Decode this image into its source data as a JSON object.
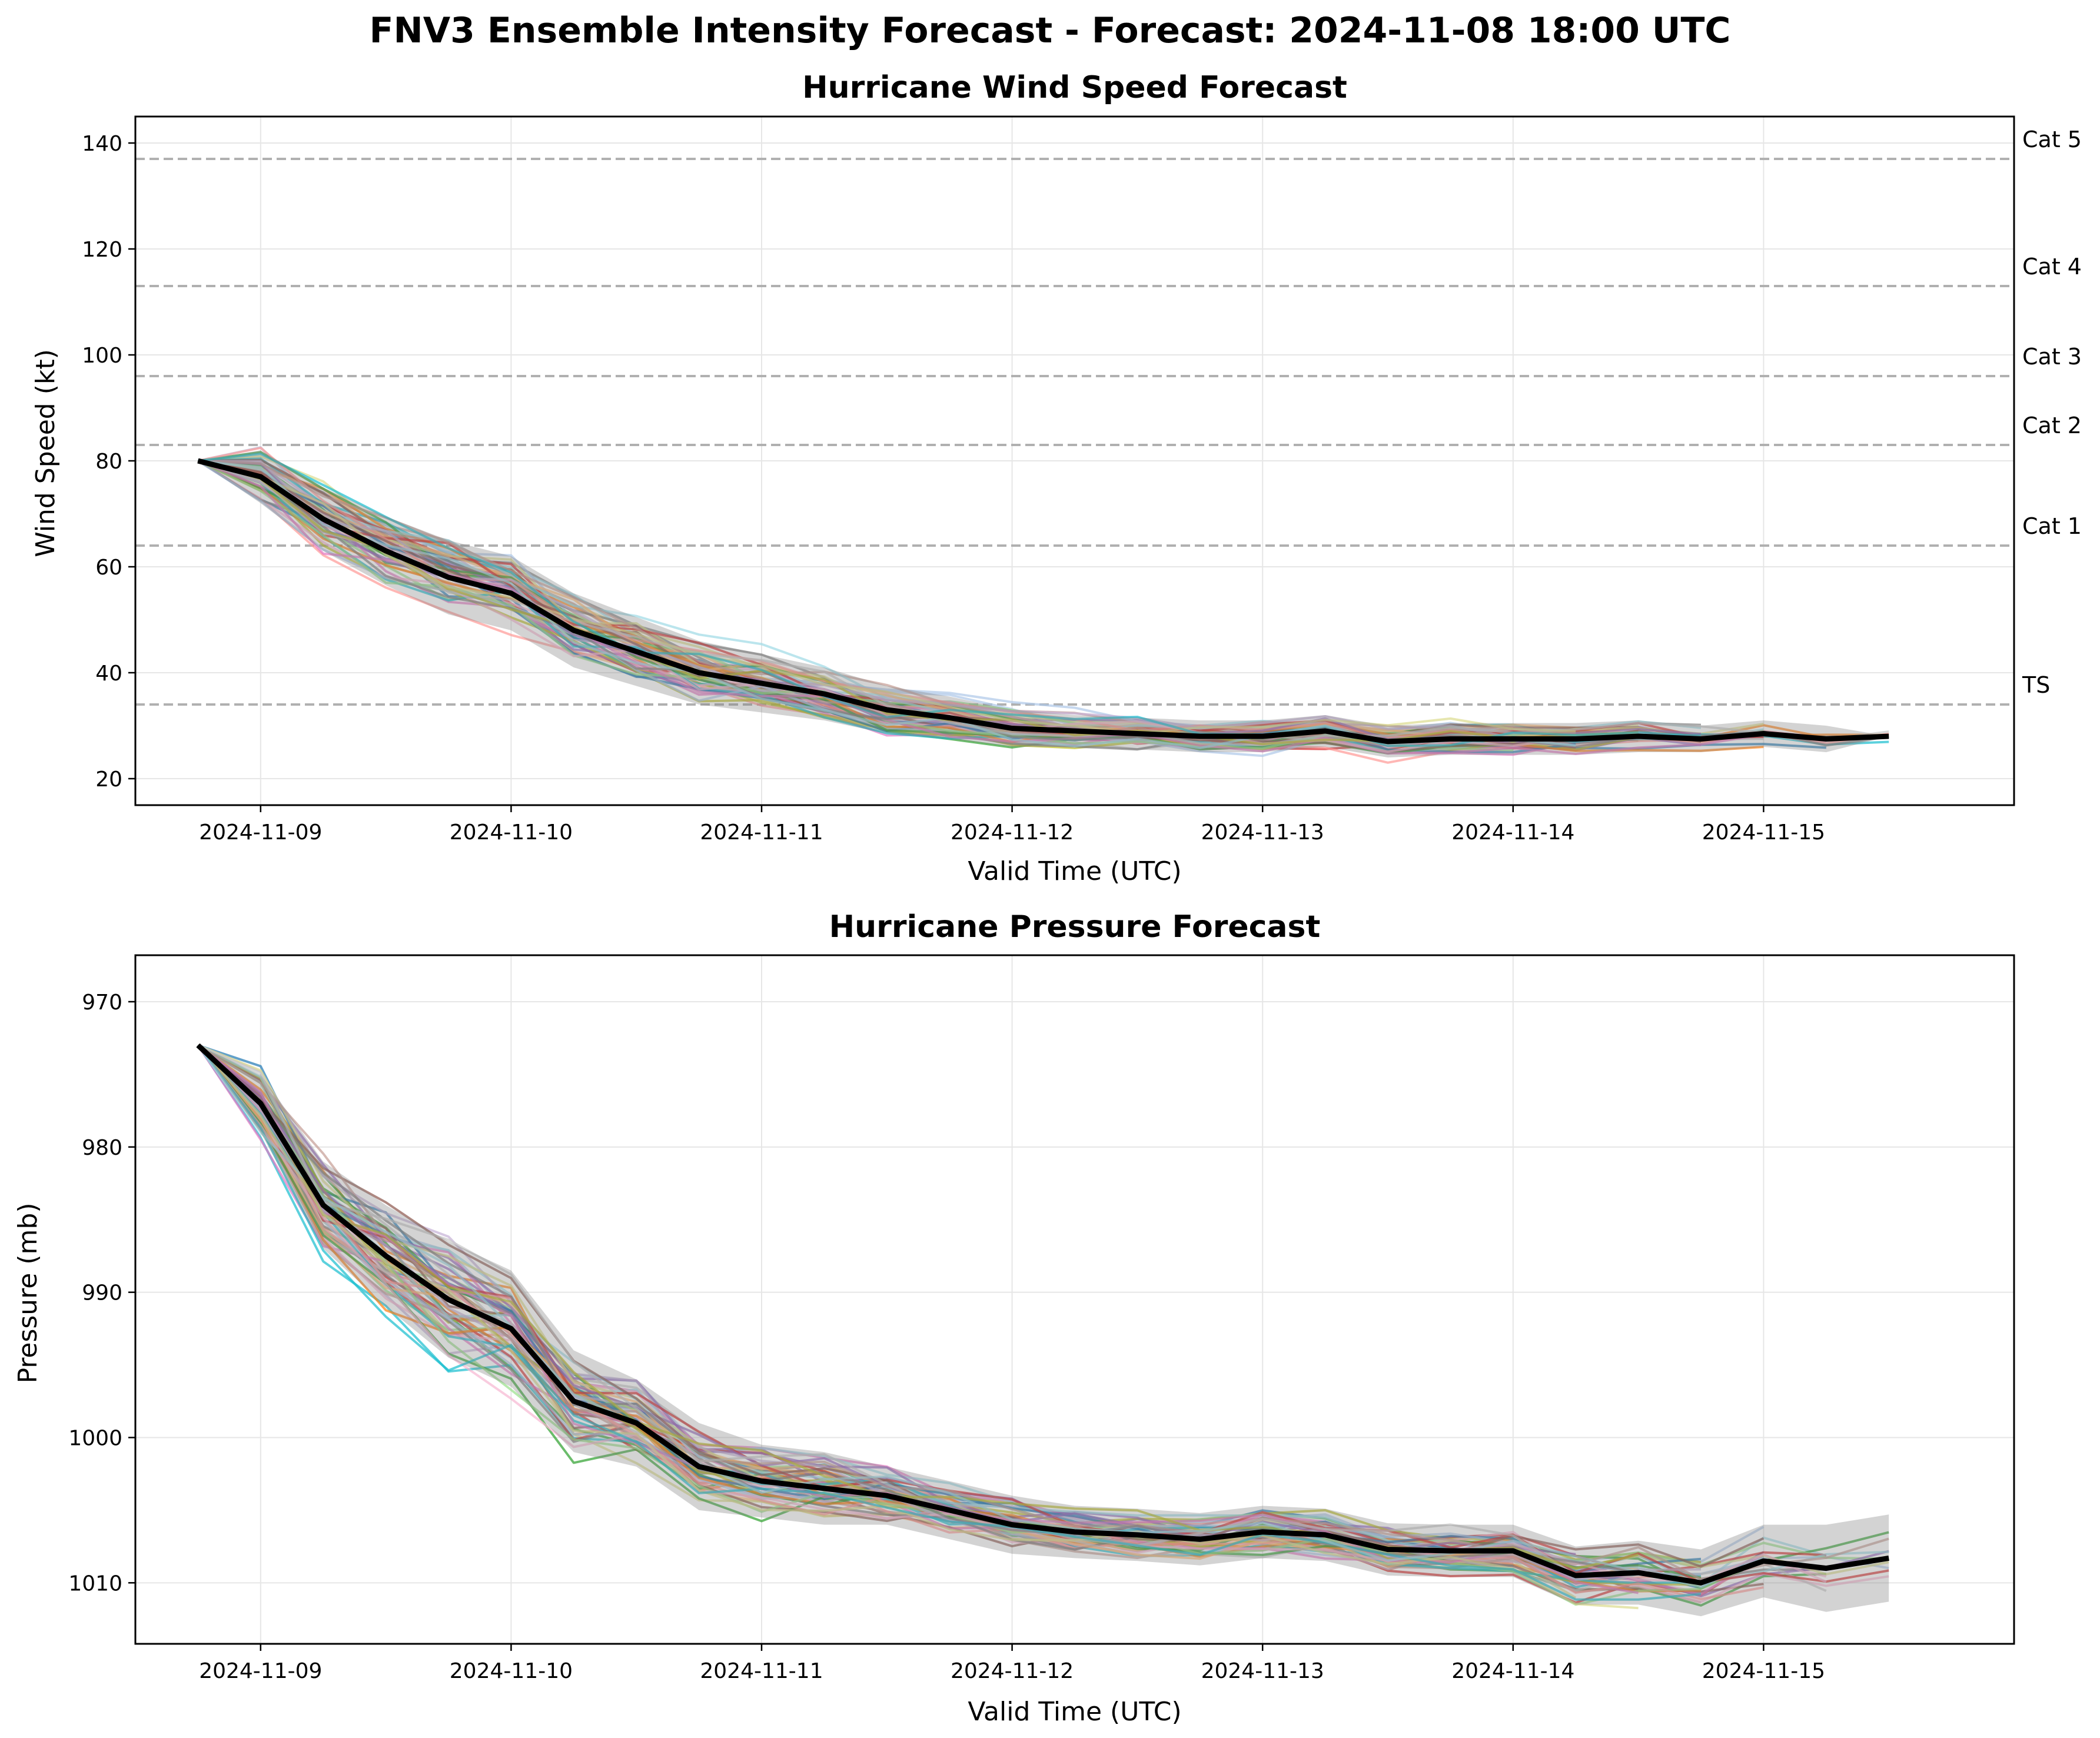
{
  "figure": {
    "suptitle": "FNV3 Ensemble Intensity Forecast - Forecast: 2024-11-08 18:00 UTC"
  },
  "colors": {
    "mean": "#000000",
    "band": "#808080",
    "reference": "#b0b0b0",
    "members": [
      "#1f77b4",
      "#aec7e8",
      "#ff7f0e",
      "#ffbb78",
      "#2ca02c",
      "#98df8a",
      "#d62728",
      "#ff9896",
      "#9467bd",
      "#c5b0d5",
      "#8c564b",
      "#c49c94",
      "#e377c2",
      "#f7b6d2",
      "#7f7f7f",
      "#c7c7c7",
      "#bcbd22",
      "#dbdb8d",
      "#17becf",
      "#9edae5"
    ]
  },
  "chart_data": [
    {
      "type": "line",
      "title": "Hurricane Wind Speed Forecast",
      "xlabel": "Valid Time (UTC)",
      "ylabel": "Wind Speed (kt)",
      "x_start": "2024-11-08 18:00",
      "x_step_hours": 6,
      "xlim": [
        "2024-11-08 12:00",
        "2024-11-16 00:00"
      ],
      "ylim": [
        15,
        145
      ],
      "x_ticks": [
        "2024-11-09",
        "2024-11-10",
        "2024-11-11",
        "2024-11-12",
        "2024-11-13",
        "2024-11-14",
        "2024-11-15"
      ],
      "y_ticks": [
        20,
        40,
        60,
        80,
        100,
        120,
        140
      ],
      "grid": true,
      "reference_lines": [
        {
          "label": "Cat 5",
          "value": 137
        },
        {
          "label": "Cat 4",
          "value": 113
        },
        {
          "label": "Cat 3",
          "value": 96
        },
        {
          "label": "Cat 2",
          "value": 83
        },
        {
          "label": "Cat 1",
          "value": 64
        },
        {
          "label": "TS",
          "value": 34
        }
      ],
      "ensemble_mean": [
        80,
        77,
        69,
        63,
        58,
        55,
        48,
        44,
        40,
        38,
        36,
        33,
        31.5,
        29.5,
        29,
        28.5,
        28,
        28,
        29,
        27,
        27.5,
        27.5,
        27.5,
        28,
        27.5,
        28.5,
        27.5,
        28
      ],
      "band_spread": [
        0,
        5,
        6,
        6.5,
        7,
        7,
        7,
        6.5,
        6,
        5.5,
        5,
        4.5,
        4,
        3.5,
        3,
        3,
        3,
        3,
        3,
        3,
        3,
        3,
        3,
        3,
        2.5,
        2.5,
        2.5,
        0
      ],
      "member_spread": [
        0,
        6,
        8,
        8,
        8,
        8,
        7.5,
        7,
        6.5,
        6,
        5.5,
        5,
        4.5,
        4,
        3.5,
        3.5,
        3.5,
        3.5,
        3.5,
        3.5,
        3.5,
        3,
        3,
        3,
        2.5,
        2.5,
        2.5,
        2.5
      ],
      "member_count": 60,
      "member_seed": 11
    },
    {
      "type": "line",
      "title": "Hurricane Pressure Forecast",
      "xlabel": "Valid Time (UTC)",
      "ylabel": "Pressure (mb)",
      "x_start": "2024-11-08 18:00",
      "x_step_hours": 6,
      "xlim": [
        "2024-11-08 12:00",
        "2024-11-16 00:00"
      ],
      "ylim": [
        1014.2,
        966.8
      ],
      "inverted_y": true,
      "x_ticks": [
        "2024-11-09",
        "2024-11-10",
        "2024-11-11",
        "2024-11-12",
        "2024-11-13",
        "2024-11-14",
        "2024-11-15"
      ],
      "y_ticks": [
        970,
        980,
        990,
        1000,
        1010
      ],
      "grid": true,
      "ensemble_mean": [
        973,
        977,
        984,
        987.5,
        990.5,
        992.5,
        997.5,
        999,
        1002,
        1003,
        1003.5,
        1004,
        1005,
        1006,
        1006.5,
        1006.7,
        1007,
        1006.5,
        1006.7,
        1007.7,
        1007.8,
        1007.8,
        1009.5,
        1009.3,
        1010,
        1008.5,
        1009,
        1008.3
      ],
      "band_spread": [
        0,
        2,
        3,
        3.5,
        4,
        4,
        3.5,
        3,
        3,
        2.5,
        2.5,
        2,
        2,
        2,
        1.8,
        1.8,
        1.8,
        1.8,
        1.8,
        1.8,
        1.8,
        1.8,
        2,
        2.2,
        2.3,
        2.5,
        3,
        3
      ],
      "member_spread": [
        0,
        3,
        4,
        4,
        4.5,
        4.5,
        4,
        3.5,
        3,
        2.8,
        2.5,
        2.3,
        2,
        2,
        1.8,
        1.8,
        1.8,
        1.8,
        1.8,
        1.8,
        1.8,
        1.8,
        2,
        2.2,
        2.2,
        2.5,
        2.5,
        2.5
      ],
      "member_count": 60,
      "member_seed": 23
    }
  ]
}
